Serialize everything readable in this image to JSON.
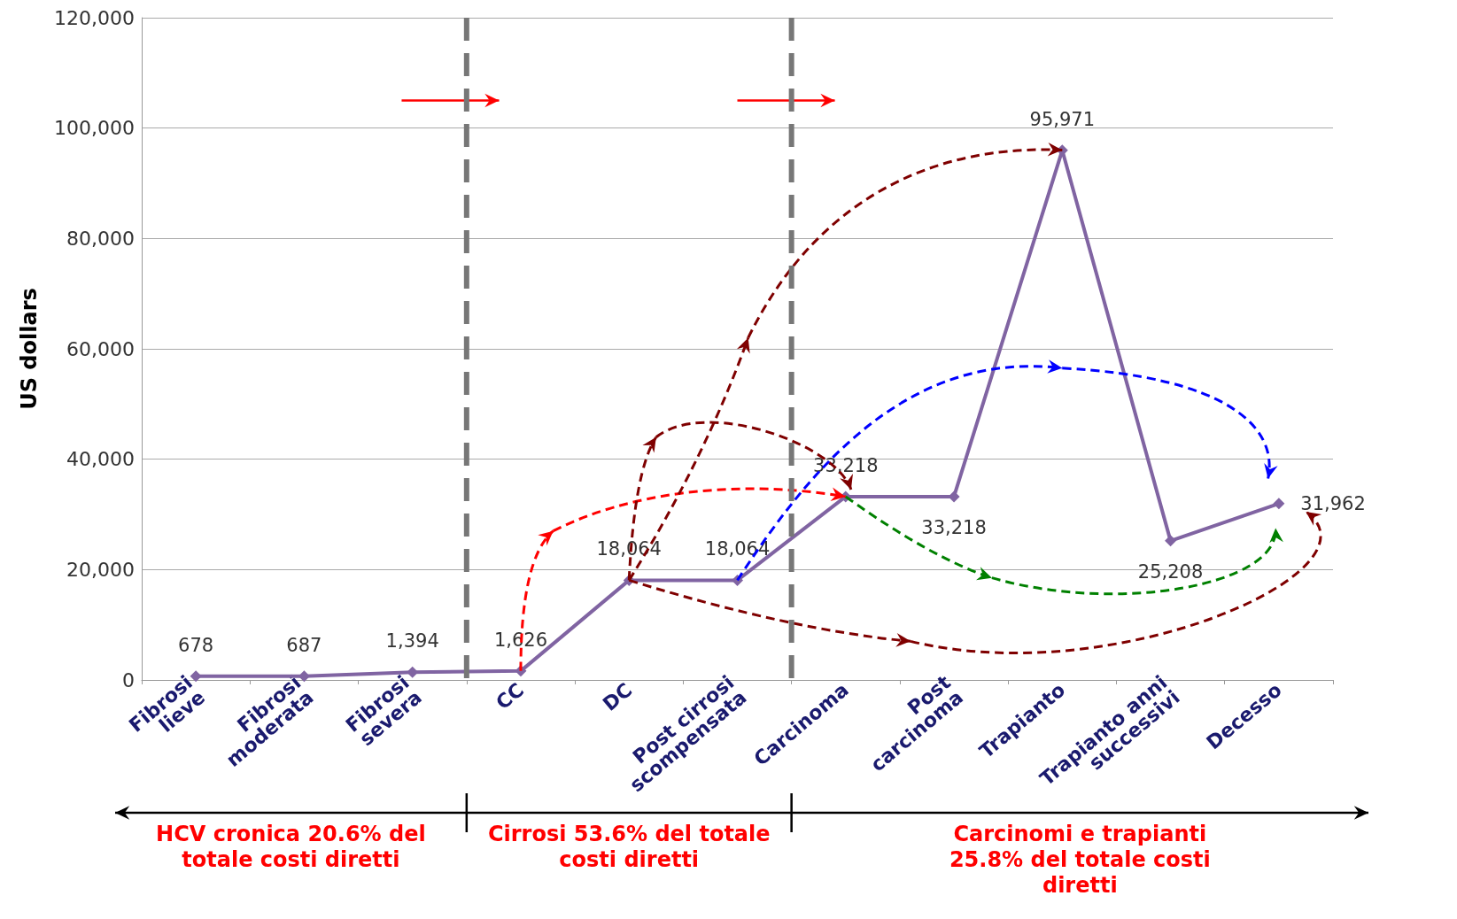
{
  "chart_data": {
    "type": "line",
    "ylabel": "US dollars",
    "categories": [
      "Fibrosi lieve",
      "Fibrosi moderata",
      "Fibrosi severa",
      "CC",
      "DC",
      "Post cirrosi scompensata",
      "Carcinoma",
      "Post carcinoma",
      "Trapianto",
      "Trapianto anni successivi",
      "Decesso"
    ],
    "series": [
      {
        "color": "#8064a2",
        "values": [
          678,
          687,
          1394,
          1626,
          18064,
          18064,
          33218,
          33218,
          95971,
          25208,
          31962
        ],
        "value_labels": [
          "678",
          "687",
          "1,394",
          "1,626",
          "18,064",
          "18,064",
          "33,218",
          "33,218",
          "95,971",
          "25,208",
          "31,962"
        ]
      }
    ],
    "ylim": [
      0,
      120000
    ],
    "yticks": [
      0,
      {
        "value": 20000,
        "label": "20,000"
      },
      {
        "value": 40000,
        "label": "40,000"
      },
      {
        "value": 60000,
        "label": "60,000"
      },
      {
        "value": 80000,
        "label": "80,000"
      },
      {
        "value": 100000,
        "label": "100,000"
      },
      {
        "value": 120000,
        "label": "120,000"
      }
    ],
    "grid": "y",
    "marker": "diamond",
    "line_style": "solid",
    "annotations": [
      "HCV cronica 20.6% del totale costi diretti",
      "Cirrosi 53.6% del totale costi diretti",
      "Carcinomi e trapianti 25.8% del totale costi diretti"
    ]
  }
}
